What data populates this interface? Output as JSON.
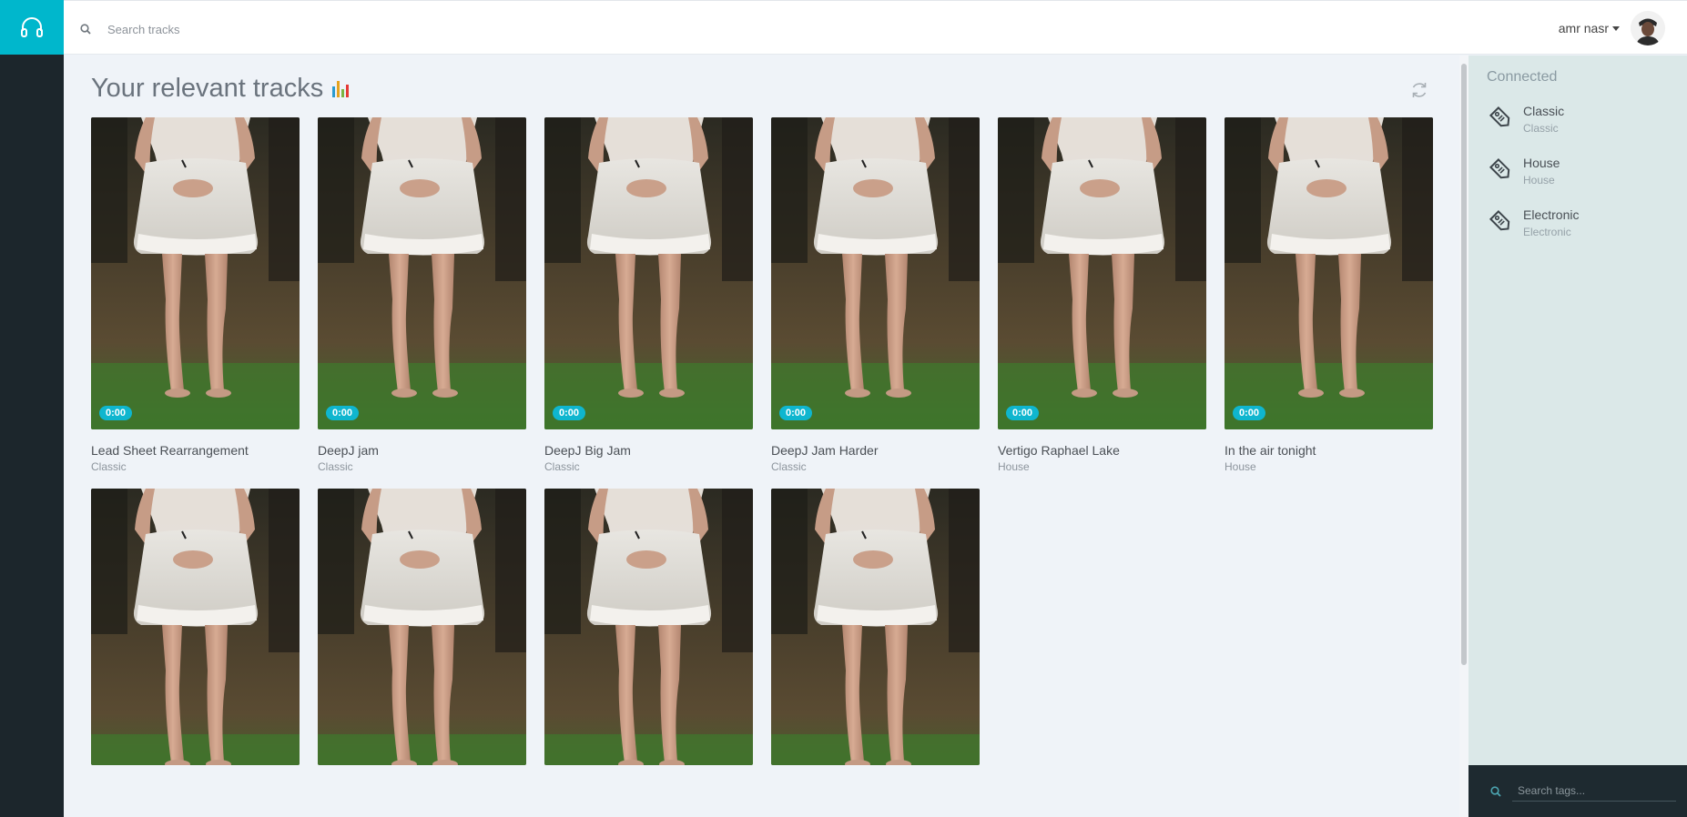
{
  "search": {
    "placeholder": "Search tracks"
  },
  "user": {
    "name": "amr nasr"
  },
  "main": {
    "title": "Your relevant tracks"
  },
  "tracks": [
    {
      "title": "Lead Sheet Rearrangement",
      "tag": "Classic",
      "duration": "0:00"
    },
    {
      "title": "DeepJ jam",
      "tag": "Classic",
      "duration": "0:00"
    },
    {
      "title": "DeepJ Big Jam",
      "tag": "Classic",
      "duration": "0:00"
    },
    {
      "title": "DeepJ Jam Harder",
      "tag": "Classic",
      "duration": "0:00"
    },
    {
      "title": "Vertigo Raphael Lake",
      "tag": "House",
      "duration": "0:00"
    },
    {
      "title": "In the air tonight",
      "tag": "House",
      "duration": "0:00"
    }
  ],
  "panel": {
    "title": "Connected",
    "tags": [
      {
        "name": "Classic",
        "sub": "Classic"
      },
      {
        "name": "House",
        "sub": "House"
      },
      {
        "name": "Electronic",
        "sub": "Electronic"
      }
    ],
    "search_placeholder": "Search tags..."
  },
  "colors": {
    "accent": "#00b7cc",
    "sidebar": "#1c262c",
    "panel": "#dbe8e8"
  },
  "icons": {
    "logo": "headphones-icon",
    "search": "search-icon",
    "title": "equalizer-icon",
    "refresh": "refresh-icon",
    "tag": "tag-icon"
  }
}
